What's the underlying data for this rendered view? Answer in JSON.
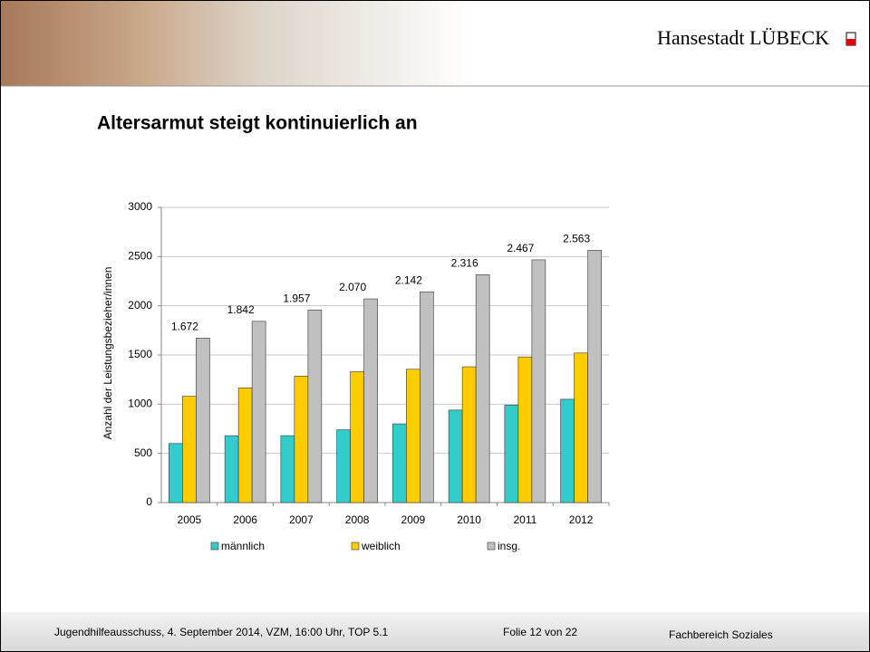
{
  "header": {
    "brand": "Hansestadt LÜBECK"
  },
  "chart_data": {
    "type": "bar",
    "title": "Altersarmut steigt kontinuierlich an",
    "y_label": "Anzahl der Leistungsbezieher/innen",
    "categories": [
      "2005",
      "2006",
      "2007",
      "2008",
      "2009",
      "2010",
      "2011",
      "2012"
    ],
    "series": [
      {
        "name": "männlich",
        "color": "#33cccc",
        "values": [
          600,
          680,
          680,
          740,
          800,
          940,
          990,
          1050
        ]
      },
      {
        "name": "weiblich",
        "color": "#ffcc00",
        "values": [
          1080,
          1165,
          1285,
          1330,
          1355,
          1380,
          1480,
          1520
        ]
      },
      {
        "name": "insg.",
        "color": "#c0c0c0",
        "values": [
          1672,
          1842,
          1957,
          2070,
          2142,
          2316,
          2467,
          2563
        ],
        "value_labels": [
          "1.672",
          "1.842",
          "1.957",
          "2.070",
          "2.142",
          "2.316",
          "2.467",
          "2.563"
        ]
      }
    ],
    "ylim": [
      0,
      3000
    ],
    "yticks": [
      0,
      500,
      1000,
      1500,
      2000,
      2500,
      3000
    ],
    "grid": true,
    "legend": "bottom"
  },
  "footer": {
    "meeting": "Jugendhilfeausschuss, 4. September 2014, VZM, 16:00 Uhr, TOP 5.1",
    "slide": "Folie 12 von 22",
    "department": "Fachbereich Soziales"
  }
}
